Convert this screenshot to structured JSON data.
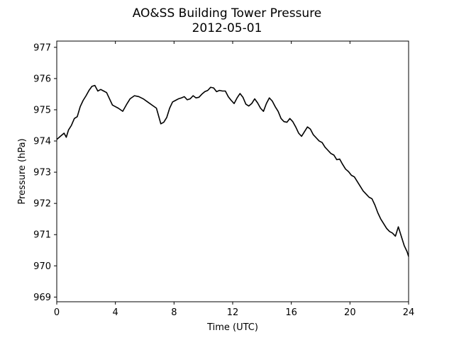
{
  "chart_data": {
    "type": "line",
    "title": "AO&SS Building Tower Pressure",
    "subtitle": "2012-05-01",
    "xlabel": "Time (UTC)",
    "ylabel": "Pressure (hPa)",
    "xlim": [
      0,
      24
    ],
    "ylim": [
      968.85,
      977.2
    ],
    "xticks": [
      0,
      4,
      8,
      12,
      16,
      20,
      24
    ],
    "yticks": [
      969,
      970,
      971,
      972,
      973,
      974,
      975,
      976,
      977
    ],
    "grid": false,
    "line_color": "#000000",
    "series": [
      {
        "x": [
          0,
          0.25,
          0.5,
          0.65,
          0.8,
          1.0,
          1.2,
          1.4,
          1.6,
          1.8,
          2.0,
          2.2,
          2.4,
          2.6,
          2.8,
          3.0,
          3.2,
          3.4,
          3.6,
          3.8,
          4.0,
          4.2,
          4.5,
          4.8,
          5.0,
          5.3,
          5.6,
          5.9,
          6.2,
          6.5,
          6.8,
          7.1,
          7.3,
          7.5,
          7.7,
          7.9,
          8.1,
          8.3,
          8.5,
          8.7,
          8.9,
          9.1,
          9.3,
          9.5,
          9.7,
          9.9,
          10.1,
          10.3,
          10.5,
          10.7,
          10.9,
          11.1,
          11.3,
          11.5,
          11.7,
          11.9,
          12.1,
          12.3,
          12.5,
          12.7,
          12.9,
          13.1,
          13.3,
          13.5,
          13.7,
          13.9,
          14.1,
          14.3,
          14.5,
          14.7,
          14.9,
          15.1,
          15.3,
          15.5,
          15.7,
          15.9,
          16.1,
          16.3,
          16.5,
          16.7,
          16.9,
          17.1,
          17.3,
          17.5,
          17.7,
          17.9,
          18.1,
          18.3,
          18.5,
          18.7,
          18.9,
          19.1,
          19.3,
          19.5,
          19.7,
          19.9,
          20.1,
          20.3,
          20.5,
          20.7,
          20.9,
          21.1,
          21.3,
          21.5,
          21.7,
          21.9,
          22.1,
          22.3,
          22.5,
          22.7,
          22.9,
          23.1,
          23.3,
          23.5,
          23.7,
          23.9,
          24.0
        ],
        "y": [
          974.05,
          974.15,
          974.25,
          974.12,
          974.35,
          974.5,
          974.72,
          974.78,
          975.1,
          975.3,
          975.45,
          975.62,
          975.75,
          975.78,
          975.6,
          975.65,
          975.6,
          975.55,
          975.35,
          975.15,
          975.1,
          975.05,
          974.95,
          975.2,
          975.35,
          975.45,
          975.42,
          975.35,
          975.25,
          975.15,
          975.05,
          974.55,
          974.6,
          974.75,
          975.05,
          975.25,
          975.3,
          975.35,
          975.38,
          975.42,
          975.32,
          975.35,
          975.45,
          975.38,
          975.4,
          975.5,
          975.58,
          975.62,
          975.72,
          975.7,
          975.58,
          975.62,
          975.6,
          975.6,
          975.42,
          975.3,
          975.2,
          975.38,
          975.52,
          975.4,
          975.18,
          975.12,
          975.2,
          975.35,
          975.22,
          975.05,
          974.95,
          975.2,
          975.38,
          975.28,
          975.1,
          974.95,
          974.72,
          974.62,
          974.6,
          974.72,
          974.62,
          974.45,
          974.25,
          974.15,
          974.3,
          974.45,
          974.38,
          974.2,
          974.1,
          974.0,
          973.95,
          973.8,
          973.7,
          973.6,
          973.55,
          973.4,
          973.42,
          973.25,
          973.1,
          973.02,
          972.9,
          972.85,
          972.7,
          972.55,
          972.4,
          972.3,
          972.2,
          972.15,
          971.95,
          971.7,
          971.5,
          971.35,
          971.2,
          971.1,
          971.05,
          970.95,
          971.25,
          970.95,
          970.65,
          970.45,
          970.3
        ]
      }
    ]
  }
}
